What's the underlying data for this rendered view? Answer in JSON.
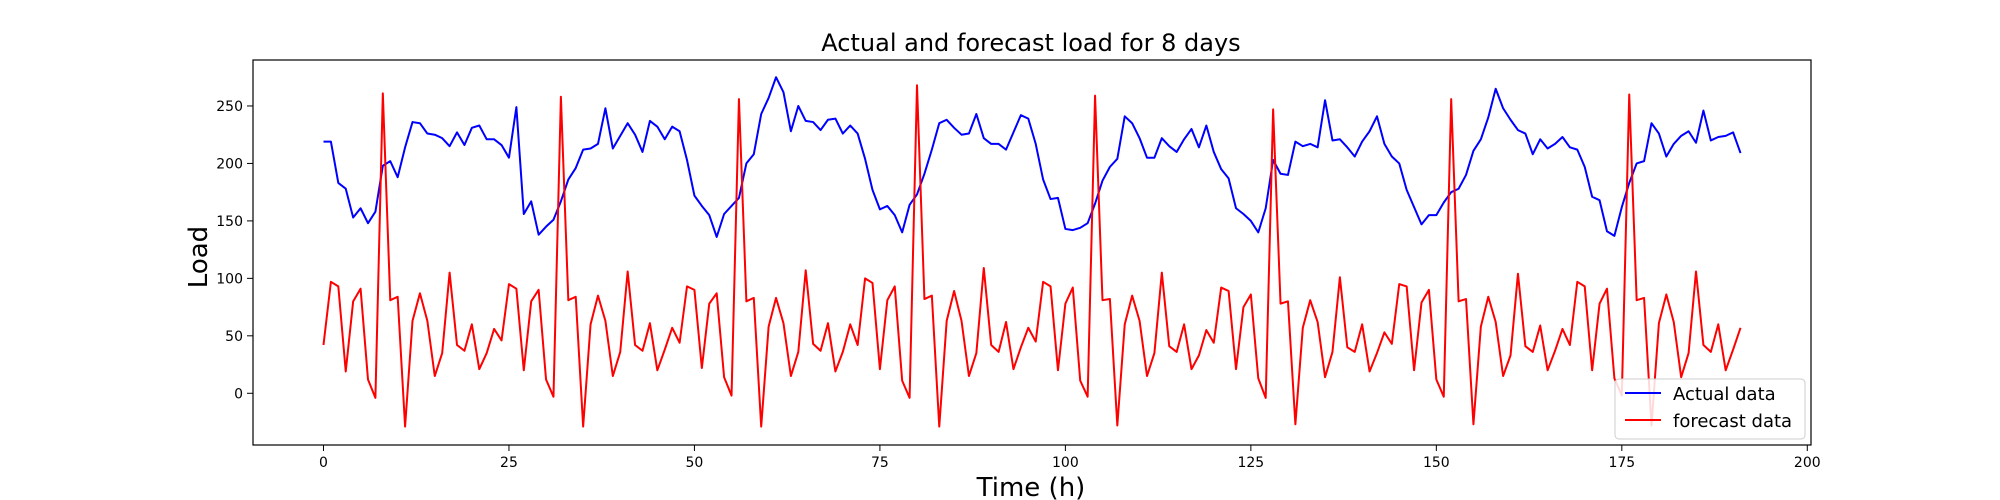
{
  "chart_data": {
    "type": "line",
    "title": "Actual and forecast load for 8 days",
    "xlabel": "Time (h)",
    "ylabel": "Load",
    "xlim": [
      -9.5,
      200.5
    ],
    "ylim": [
      -45,
      290
    ],
    "xticks": [
      0,
      25,
      50,
      75,
      100,
      125,
      150,
      175,
      200
    ],
    "yticks": [
      0,
      50,
      100,
      150,
      200,
      250
    ],
    "grid": false,
    "legend_position": "lower-right",
    "x": [
      0,
      1,
      2,
      3,
      4,
      5,
      6,
      7,
      8,
      9,
      10,
      11,
      12,
      13,
      14,
      15,
      16,
      17,
      18,
      19,
      20,
      21,
      22,
      23,
      24,
      25,
      26,
      27,
      28,
      29,
      30,
      31,
      32,
      33,
      34,
      35,
      36,
      37,
      38,
      39,
      40,
      41,
      42,
      43,
      44,
      45,
      46,
      47,
      48,
      49,
      50,
      51,
      52,
      53,
      54,
      55,
      56,
      57,
      58,
      59,
      60,
      61,
      62,
      63,
      64,
      65,
      66,
      67,
      68,
      69,
      70,
      71,
      72,
      73,
      74,
      75,
      76,
      77,
      78,
      79,
      80,
      81,
      82,
      83,
      84,
      85,
      86,
      87,
      88,
      89,
      90,
      91,
      92,
      93,
      94,
      95,
      96,
      97,
      98,
      99,
      100,
      101,
      102,
      103,
      104,
      105,
      106,
      107,
      108,
      109,
      110,
      111,
      112,
      113,
      114,
      115,
      116,
      117,
      118,
      119,
      120,
      121,
      122,
      123,
      124,
      125,
      126,
      127,
      128,
      129,
      130,
      131,
      132,
      133,
      134,
      135,
      136,
      137,
      138,
      139,
      140,
      141,
      142,
      143,
      144,
      145,
      146,
      147,
      148,
      149,
      150,
      151,
      152,
      153,
      154,
      155,
      156,
      157,
      158,
      159,
      160,
      161,
      162,
      163,
      164,
      165,
      166,
      167,
      168,
      169,
      170,
      171,
      172,
      173,
      174,
      175,
      176,
      177,
      178,
      179,
      180,
      181,
      182,
      183,
      184,
      185,
      186,
      187,
      188,
      189,
      190,
      191
    ],
    "series": [
      {
        "name": "Actual data",
        "color": "#0000ff",
        "values": [
          219,
          219,
          183,
          178,
          153,
          161,
          148,
          158,
          198,
          202,
          188,
          214,
          236,
          235,
          226,
          225,
          222,
          215,
          227,
          216,
          231,
          233,
          221,
          221,
          216,
          205,
          249,
          156,
          167,
          138,
          145,
          151,
          167,
          186,
          196,
          212,
          213,
          217,
          248,
          213,
          224,
          235,
          225,
          210,
          237,
          232,
          221,
          232,
          228,
          203,
          172,
          163,
          155,
          136,
          156,
          163,
          170,
          200,
          208,
          243,
          257,
          275,
          262,
          228,
          250,
          237,
          236,
          229,
          238,
          239,
          226,
          233,
          226,
          204,
          177,
          160,
          163,
          155,
          140,
          164,
          173,
          191,
          212,
          235,
          238,
          231,
          225,
          226,
          243,
          222,
          217,
          217,
          212,
          227,
          242,
          239,
          217,
          186,
          169,
          170,
          143,
          142,
          144,
          148,
          165,
          185,
          197,
          204,
          241,
          235,
          222,
          205,
          205,
          222,
          215,
          210,
          221,
          230,
          214,
          233,
          210,
          195,
          187,
          161,
          156,
          150,
          140,
          161,
          203,
          191,
          190,
          219,
          215,
          217,
          214,
          255,
          220,
          221,
          214,
          206,
          219,
          228,
          241,
          217,
          206,
          200,
          177,
          162,
          147,
          155,
          155,
          166,
          175,
          178,
          190,
          211,
          221,
          240,
          265,
          248,
          238,
          229,
          226,
          208,
          221,
          213,
          217,
          223,
          214,
          212,
          197,
          171,
          168,
          141,
          137,
          162,
          183,
          200,
          202,
          235,
          226,
          206,
          217,
          224,
          228,
          218,
          246,
          220,
          223,
          224,
          227,
          209
        ]
      },
      {
        "name": "forecast data",
        "color": "#ff0000",
        "values": [
          42,
          97,
          93,
          19,
          80,
          91,
          12,
          -4,
          261,
          81,
          84,
          -29,
          63,
          87,
          63,
          15,
          35,
          105,
          42,
          37,
          60,
          21,
          35,
          56,
          46,
          95,
          91,
          20,
          80,
          90,
          12,
          -3,
          258,
          81,
          84,
          -29,
          60,
          85,
          63,
          15,
          36,
          106,
          42,
          37,
          61,
          20,
          38,
          57,
          44,
          93,
          90,
          22,
          78,
          87,
          14,
          -2,
          256,
          80,
          83,
          -29,
          58,
          83,
          61,
          15,
          36,
          107,
          43,
          37,
          61,
          19,
          36,
          60,
          42,
          100,
          96,
          21,
          81,
          93,
          11,
          -4,
          268,
          82,
          85,
          -29,
          63,
          89,
          63,
          15,
          35,
          109,
          42,
          36,
          62,
          21,
          40,
          57,
          45,
          97,
          93,
          20,
          78,
          92,
          11,
          -3,
          259,
          81,
          82,
          -28,
          60,
          85,
          63,
          15,
          35,
          105,
          41,
          36,
          60,
          21,
          33,
          55,
          44,
          92,
          89,
          21,
          75,
          86,
          13,
          -4,
          247,
          78,
          80,
          -27,
          57,
          81,
          62,
          14,
          36,
          101,
          40,
          36,
          60,
          19,
          35,
          53,
          43,
          95,
          93,
          20,
          79,
          90,
          12,
          -3,
          256,
          80,
          82,
          -27,
          58,
          84,
          62,
          15,
          33,
          104,
          41,
          36,
          59,
          20,
          37,
          56,
          42,
          97,
          93,
          20,
          78,
          91,
          13,
          -2,
          260,
          81,
          83,
          -28,
          61,
          86,
          62,
          14,
          35,
          106,
          42,
          36,
          60,
          20,
          38,
          57
        ]
      }
    ]
  }
}
